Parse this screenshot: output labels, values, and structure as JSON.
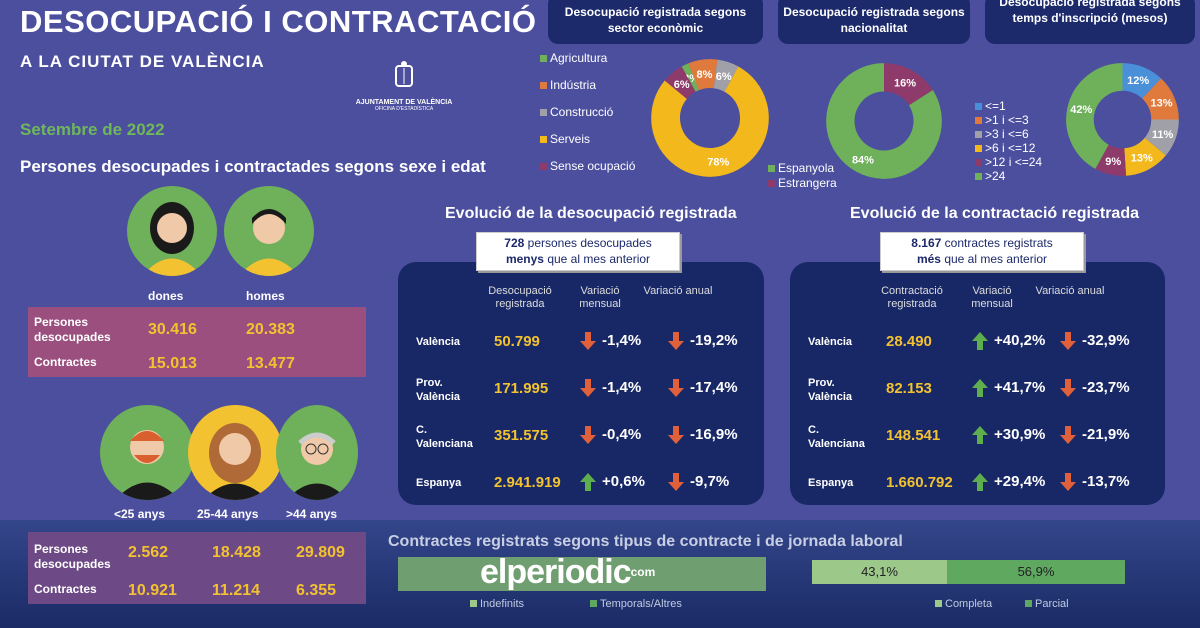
{
  "header": {
    "title": "DESOCUPACIÓ I CONTRACTACIÓ",
    "subtitle": "A LA CIUTAT DE VALÈNCIA",
    "logo_name": "AJUNTAMENT DE VALÈNCIA",
    "logo_office": "OFICINA D'ESTADÍSTICA",
    "month": "Setembre de 2022"
  },
  "sexe_edat": {
    "title": "Persones desocupades i contractades segons sexe i edat",
    "sexe_labels": [
      "dones",
      "homes"
    ],
    "row_labels": [
      "Persones desocupades",
      "Contractes"
    ],
    "sexe_values": [
      [
        "30.416",
        "20.383"
      ],
      [
        "15.013",
        "13.477"
      ]
    ],
    "edat_labels": [
      "<25 anys",
      "25-44 anys",
      ">44 anys"
    ],
    "edat_values": [
      [
        "2.562",
        "18.428",
        "29.809"
      ],
      [
        "10.921",
        "11.214",
        "6.355"
      ]
    ]
  },
  "chart_data": [
    {
      "type": "pie",
      "title": "Desocupació registrada segons sector econòmic",
      "categories": [
        "Agricultura",
        "Indústria",
        "Construcció",
        "Serveis",
        "Sense ocupació"
      ],
      "values": [
        2,
        8,
        6,
        78,
        6
      ],
      "colors": [
        "#6fb05a",
        "#e07a3c",
        "#a0a0a8",
        "#f2b81c",
        "#8e3a6a"
      ],
      "labels": [
        "2%",
        "8%",
        "6%",
        "78%",
        "6%"
      ]
    },
    {
      "type": "pie",
      "title": "Desocupació registrada segons nacionalitat",
      "categories": [
        "Espanyola",
        "Estrangera"
      ],
      "values": [
        84,
        16
      ],
      "colors": [
        "#6fb05a",
        "#8e3a6a"
      ],
      "labels": [
        "84%",
        "16%"
      ]
    },
    {
      "type": "pie",
      "title": "Desocupació registrada segons temps d'inscripció (mesos)",
      "categories": [
        "<=1",
        ">1 i <=3",
        ">3 i <=6",
        ">6 i <=12",
        ">12 i <=24",
        ">24"
      ],
      "values": [
        12,
        13,
        11,
        13,
        9,
        42
      ],
      "colors": [
        "#4a90d9",
        "#e07a3c",
        "#a0a0a8",
        "#f2b81c",
        "#8e3a6a",
        "#6fb05a"
      ],
      "labels": [
        "12%",
        "13%",
        "11%",
        "13%",
        "9%",
        "42%"
      ]
    }
  ],
  "desocupacio": {
    "title": "Evolució de la desocupació registrada",
    "callout_num": "728",
    "callout_a": "persones desocupades",
    "callout_bold": "menys",
    "callout_b": "que al mes anterior",
    "cols": [
      "Desocupació registrada",
      "Variació mensual",
      "Variació anual"
    ],
    "rows": [
      {
        "name": "València",
        "value": "50.799",
        "m": "-1,4%",
        "m_dir": "down",
        "a": "-19,2%",
        "a_dir": "down"
      },
      {
        "name": "Prov. València",
        "value": "171.995",
        "m": "-1,4%",
        "m_dir": "down",
        "a": "-17,4%",
        "a_dir": "down"
      },
      {
        "name": "C. Valenciana",
        "value": "351.575",
        "m": "-0,4%",
        "m_dir": "down",
        "a": "-16,9%",
        "a_dir": "down"
      },
      {
        "name": "Espanya",
        "value": "2.941.919",
        "m": "+0,6%",
        "m_dir": "up",
        "a": "-9,7%",
        "a_dir": "down"
      }
    ]
  },
  "contractacio": {
    "title": "Evolució de la contractació registrada",
    "callout_num": "8.167",
    "callout_a": "contractes registrats",
    "callout_bold": "més",
    "callout_b": "que al mes anterior",
    "cols": [
      "Contractació registrada",
      "Variació mensual",
      "Variació anual"
    ],
    "rows": [
      {
        "name": "València",
        "value": "28.490",
        "m": "+40,2%",
        "m_dir": "up",
        "a": "-32,9%",
        "a_dir": "down"
      },
      {
        "name": "Prov. València",
        "value": "82.153",
        "m": "+41,7%",
        "m_dir": "up",
        "a": "-23,7%",
        "a_dir": "down"
      },
      {
        "name": "C. Valenciana",
        "value": "148.541",
        "m": "+30,9%",
        "m_dir": "up",
        "a": "-21,9%",
        "a_dir": "down"
      },
      {
        "name": "Espanya",
        "value": "1.660.792",
        "m": "+29,4%",
        "m_dir": "up",
        "a": "-13,7%",
        "a_dir": "down"
      }
    ]
  },
  "tipus": {
    "title": "Contractes registrats segons tipus de contracte i de jornada laboral",
    "legend_left": [
      "Indefinits",
      "Temporals/Altres"
    ],
    "jornada": [
      {
        "label": "Completa",
        "value": "43,1%"
      },
      {
        "label": "Parcial",
        "value": "56,9%"
      }
    ]
  },
  "watermark": {
    "text": "elperiodic",
    "suffix": "com"
  },
  "colors": {
    "up": "#5fae4e",
    "down": "#e0603c",
    "value": "#f2c230"
  }
}
